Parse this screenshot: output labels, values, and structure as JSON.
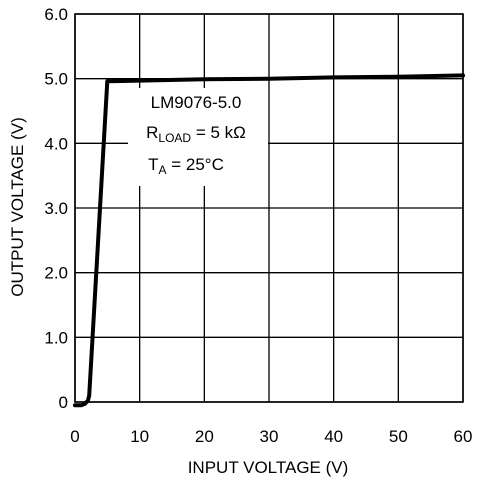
{
  "chart_data": {
    "type": "line",
    "xlabel": "INPUT VOLTAGE (V)",
    "ylabel": "OUTPUT VOLTAGE (V)",
    "xlim": [
      0,
      60
    ],
    "ylim": [
      0,
      6.0
    ],
    "x_ticks": [
      "0",
      "10",
      "20",
      "30",
      "40",
      "50",
      "60"
    ],
    "y_ticks": [
      "0",
      "1.0",
      "2.0",
      "3.0",
      "4.0",
      "5.0",
      "6.0"
    ],
    "grid": true,
    "annotations": {
      "part": "LM9076-5.0",
      "r_main": "R",
      "r_sub": "LOAD",
      "r_value": " = 5 kΩ",
      "t_main": "T",
      "t_sub": "A",
      "t_value": " = 25°C"
    },
    "series": [
      {
        "x": [
          0,
          1.0,
          1.5,
          2.0,
          2.2,
          5.0,
          10,
          20,
          30,
          40,
          50,
          60
        ],
        "y": [
          -0.05,
          -0.05,
          -0.03,
          0.02,
          0.1,
          4.96,
          4.97,
          4.99,
          5.0,
          5.02,
          5.03,
          5.05
        ]
      }
    ]
  }
}
